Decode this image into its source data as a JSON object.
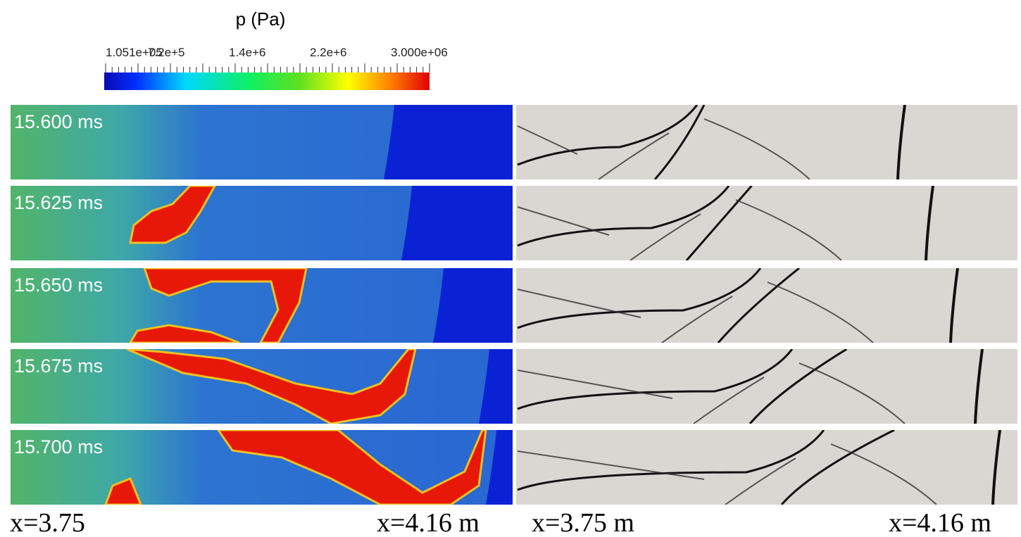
{
  "colorbar": {
    "title": "p (Pa)",
    "tick_labels": [
      "1.051e+05",
      "7.2e+5",
      "1.4e+6",
      "2.2e+6",
      "3.000e+06"
    ]
  },
  "panels": [
    {
      "time": "15.600 ms"
    },
    {
      "time": "15.625 ms"
    },
    {
      "time": "15.650 ms"
    },
    {
      "time": "15.675 ms"
    },
    {
      "time": "15.700 ms"
    }
  ],
  "axis_labels": {
    "left_start": "x=3.75",
    "left_end": "x=4.16 m",
    "right_start": "x=3.75 m",
    "right_end": "x=4.16 m"
  }
}
